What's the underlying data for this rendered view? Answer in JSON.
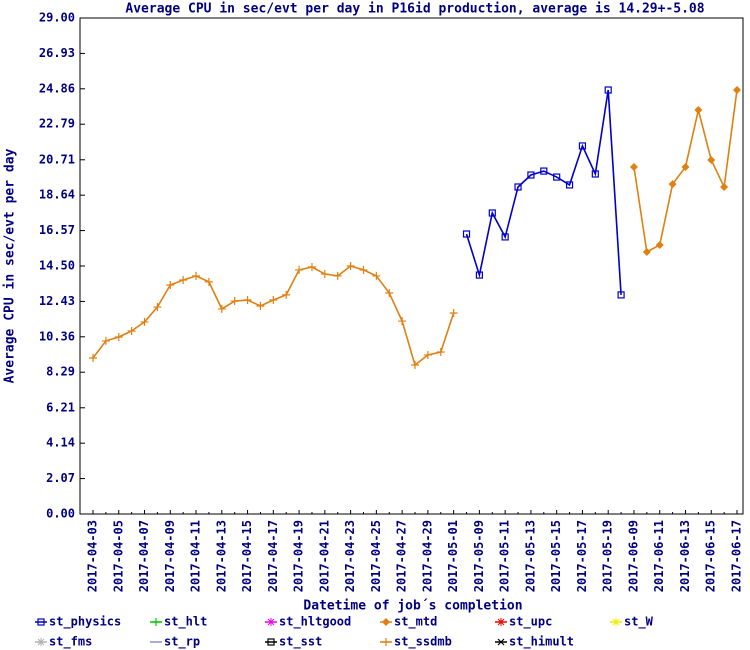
{
  "chart_data": {
    "type": "line",
    "title": "Average CPU in sec/evt per day in P16id production, average is 14.29+-5.08",
    "x_label": "Datetime of job´s completion",
    "y_label": "Average CPU in sec/evt per day",
    "categories": [
      "2017-04-03",
      null,
      "2017-04-05",
      null,
      "2017-04-07",
      null,
      "2017-04-09",
      null,
      "2017-04-11",
      null,
      "2017-04-13",
      null,
      "2017-04-15",
      null,
      "2017-04-17",
      null,
      "2017-04-19",
      null,
      "2017-04-21",
      null,
      "2017-04-23",
      null,
      "2017-04-25",
      null,
      "2017-04-27",
      null,
      "2017-04-29",
      null,
      "2017-05-01",
      null,
      "2017-05-09",
      null,
      "2017-05-11",
      null,
      "2017-05-13",
      null,
      "2017-05-15",
      null,
      "2017-05-17",
      null,
      "2017-05-19",
      null,
      "2017-06-09",
      null,
      "2017-06-11",
      null,
      "2017-06-13",
      null,
      "2017-06-15",
      null,
      "2017-06-17"
    ],
    "ylim": [
      0,
      29
    ],
    "yticks": [
      {
        "value": 0,
        "label": "0.00"
      },
      2.07,
      4.14,
      6.21,
      8.29,
      10.36,
      12.43,
      {
        "value": 14.5,
        "label": "14.50"
      },
      16.57,
      18.64,
      20.71,
      22.79,
      24.86,
      26.93,
      {
        "value": 29,
        "label": "29.00"
      }
    ],
    "series": [
      {
        "name": "st_physics",
        "color": "#0000cc",
        "marker": "square",
        "values": [
          null,
          null,
          null,
          null,
          null,
          null,
          null,
          null,
          null,
          null,
          null,
          null,
          null,
          null,
          null,
          null,
          null,
          null,
          null,
          null,
          null,
          null,
          null,
          null,
          null,
          null,
          null,
          null,
          null,
          16.37,
          13.97,
          17.6,
          16.2,
          19.12,
          19.82,
          20.05,
          19.7,
          19.24,
          21.52,
          19.88,
          24.79,
          12.81,
          null,
          null,
          null,
          null,
          null,
          null,
          null,
          null,
          null
        ]
      },
      {
        "name": "st_hlt",
        "color": "#00cc00",
        "marker": "plus",
        "values": [
          null,
          null,
          null,
          null,
          null,
          null,
          null,
          null,
          null,
          null,
          null,
          null,
          null,
          null,
          null,
          null,
          null,
          null,
          null,
          null,
          null,
          null,
          null,
          null,
          null,
          null,
          null,
          null,
          null,
          null,
          null,
          null,
          null,
          null,
          null,
          null,
          null,
          null,
          null,
          null,
          null,
          null,
          null,
          null,
          null,
          null,
          null,
          null,
          null,
          null,
          null
        ]
      },
      {
        "name": "st_hltgood",
        "color": "#ee00ee",
        "marker": "star",
        "values": [
          null,
          null,
          null,
          null,
          null,
          null,
          null,
          null,
          null,
          null,
          null,
          null,
          null,
          null,
          null,
          null,
          null,
          null,
          null,
          null,
          null,
          null,
          null,
          null,
          null,
          null,
          null,
          null,
          null,
          null,
          null,
          null,
          null,
          null,
          null,
          null,
          null,
          null,
          null,
          null,
          null,
          null,
          null,
          null,
          null,
          null,
          null,
          null,
          null,
          null,
          null
        ]
      },
      {
        "name": "st_mtd",
        "color": "#e08010",
        "marker": "diamond",
        "values": [
          null,
          null,
          null,
          null,
          null,
          null,
          null,
          null,
          null,
          null,
          null,
          null,
          null,
          null,
          null,
          null,
          null,
          null,
          null,
          null,
          null,
          null,
          null,
          null,
          null,
          null,
          null,
          null,
          null,
          null,
          null,
          null,
          null,
          null,
          null,
          null,
          null,
          null,
          null,
          null,
          null,
          null,
          20.29,
          15.32,
          15.73,
          19.29,
          20.29,
          23.62,
          20.7,
          19.12,
          24.79
        ]
      },
      {
        "name": "st_upc",
        "color": "#ee0000",
        "marker": "star",
        "values": [
          null,
          null,
          null,
          null,
          null,
          null,
          null,
          null,
          null,
          null,
          null,
          null,
          null,
          null,
          null,
          null,
          null,
          null,
          null,
          null,
          null,
          null,
          null,
          null,
          null,
          null,
          null,
          null,
          null,
          null,
          null,
          null,
          null,
          null,
          null,
          null,
          null,
          null,
          null,
          null,
          null,
          null,
          null,
          null,
          null,
          null,
          null,
          null,
          null,
          null,
          null
        ]
      },
      {
        "name": "st_W",
        "color": "#eeee00",
        "marker": "star",
        "values": [
          null,
          null,
          null,
          null,
          null,
          null,
          null,
          null,
          null,
          null,
          null,
          null,
          null,
          null,
          null,
          null,
          null,
          null,
          null,
          null,
          null,
          null,
          null,
          null,
          null,
          null,
          null,
          null,
          null,
          null,
          null,
          null,
          null,
          null,
          null,
          null,
          null,
          null,
          null,
          null,
          null,
          null,
          null,
          null,
          null,
          null,
          null,
          null,
          null,
          null,
          null
        ]
      },
      {
        "name": "st_fms",
        "color": "#b0b0b0",
        "marker": "star",
        "values": [
          null,
          null,
          null,
          null,
          null,
          null,
          null,
          null,
          null,
          null,
          null,
          null,
          null,
          null,
          null,
          null,
          null,
          null,
          null,
          null,
          null,
          null,
          null,
          null,
          null,
          null,
          null,
          null,
          null,
          null,
          null,
          null,
          null,
          null,
          null,
          null,
          null,
          null,
          null,
          null,
          null,
          null,
          null,
          null,
          null,
          null,
          null,
          null,
          null,
          null,
          null
        ]
      },
      {
        "name": "st_rp",
        "color": "#9090d0",
        "marker": "none",
        "values": [
          null,
          null,
          null,
          null,
          null,
          null,
          null,
          null,
          null,
          null,
          null,
          null,
          null,
          null,
          null,
          null,
          null,
          null,
          null,
          null,
          null,
          null,
          null,
          null,
          null,
          null,
          null,
          null,
          null,
          null,
          null,
          null,
          null,
          null,
          null,
          null,
          null,
          null,
          null,
          null,
          null,
          null,
          null,
          null,
          null,
          null,
          null,
          null,
          null,
          null,
          null
        ]
      },
      {
        "name": "st_sst",
        "color": "#000000",
        "marker": "square",
        "values": [
          null,
          null,
          null,
          null,
          null,
          null,
          null,
          null,
          null,
          null,
          null,
          null,
          null,
          null,
          null,
          null,
          null,
          null,
          null,
          null,
          null,
          null,
          null,
          null,
          null,
          null,
          null,
          null,
          null,
          null,
          null,
          null,
          null,
          null,
          null,
          null,
          null,
          null,
          null,
          null,
          null,
          null,
          null,
          null,
          null,
          null,
          null,
          null,
          null,
          null,
          null
        ]
      },
      {
        "name": "st_ssdmb",
        "color": "#e08010",
        "marker": "plus",
        "values": [
          9.12,
          10.12,
          10.35,
          10.7,
          11.23,
          12.1,
          13.39,
          13.68,
          13.92,
          13.57,
          11.99,
          12.45,
          12.51,
          12.16,
          12.51,
          12.81,
          14.27,
          14.44,
          14.03,
          13.92,
          14.5,
          14.27,
          13.92,
          12.92,
          11.28,
          8.71,
          9.3,
          9.47,
          11.75,
          null,
          null,
          null,
          null,
          null,
          null,
          null,
          null,
          null,
          null,
          null,
          null,
          null,
          null,
          null,
          null,
          null,
          null,
          null,
          null,
          null,
          null
        ]
      },
      {
        "name": "st_himult",
        "color": "#000000",
        "marker": "cross",
        "values": [
          null,
          null,
          null,
          null,
          null,
          null,
          null,
          null,
          null,
          null,
          null,
          null,
          null,
          null,
          null,
          null,
          null,
          null,
          null,
          null,
          null,
          null,
          null,
          null,
          null,
          null,
          null,
          null,
          null,
          null,
          null,
          null,
          null,
          null,
          null,
          null,
          null,
          null,
          null,
          null,
          null,
          null,
          null,
          null,
          null,
          null,
          null,
          null,
          null,
          null,
          null
        ]
      }
    ]
  }
}
